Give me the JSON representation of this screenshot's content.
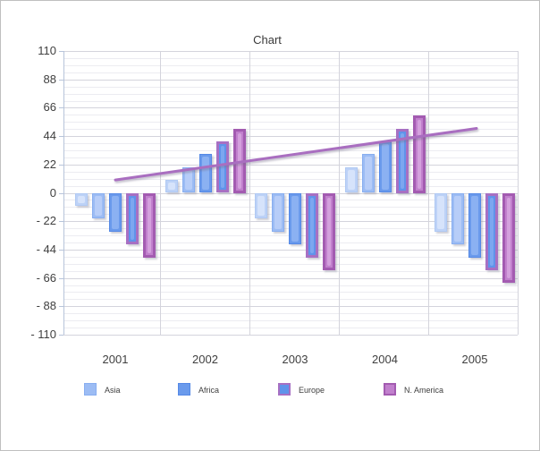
{
  "window": {
    "background": "#ffffff",
    "border_color": "#bfbfbf"
  },
  "chart_data": {
    "type": "bar",
    "title": "Chart",
    "categories": [
      "2001",
      "2002",
      "2003",
      "2004",
      "2005"
    ],
    "series": [
      {
        "name": "",
        "values": [
          -10,
          10,
          -20,
          20,
          -30
        ],
        "fill": "#bdd2f7",
        "inner": "#d6e3fb",
        "border": "#b0c9f3",
        "border_width": 1
      },
      {
        "name": "Asia",
        "values": [
          -20,
          20,
          -30,
          30,
          -40
        ],
        "fill": "#9cbcf4",
        "inner": "#b7cdf8",
        "border": "#88aef0",
        "border_width": 1
      },
      {
        "name": "Africa",
        "values": [
          -30,
          30,
          -40,
          40,
          -50
        ],
        "fill": "#6a9aec",
        "inner": "#8bb1f2",
        "border": "#5589e6",
        "border_width": 1
      },
      {
        "name": "Europe",
        "values": [
          -40,
          40,
          -50,
          50,
          -60
        ],
        "fill": "#5f93ea",
        "inner": "#7ca7f0",
        "border": "#a770c3",
        "border_width": 3
      },
      {
        "name": "N. America",
        "values": [
          -50,
          50,
          -60,
          60,
          -70
        ],
        "fill": "#c180cd",
        "inner": "#d4a0dd",
        "border": "#a35bb1",
        "border_width": 3
      }
    ],
    "trendline": {
      "from_category": "2001",
      "to_category": "2005",
      "values": [
        10,
        50
      ],
      "color": "#a96ec0",
      "width": 3
    },
    "ylim": [
      -110,
      110
    ],
    "y_major_step": 22,
    "y_minor_step": 5.5,
    "y_tick_labels": [
      "110",
      "88",
      "66",
      "44",
      "22",
      "0",
      "- 22",
      "- 44",
      "- 66",
      "- 88",
      "- 110"
    ],
    "grid": true,
    "legend_position": "bottom",
    "legend": [
      {
        "label": "Asia",
        "fill": "#9cbcf4",
        "border": "#88aef0",
        "border_width": 1
      },
      {
        "label": "Africa",
        "fill": "#6a9aec",
        "border": "#5589e6",
        "border_width": 1
      },
      {
        "label": "Europe",
        "fill": "#5f93ea",
        "border": "#a770c3",
        "border_width": 2
      },
      {
        "label": "N. America",
        "fill": "#c180cd",
        "border": "#a35bb1",
        "border_width": 2
      }
    ]
  }
}
